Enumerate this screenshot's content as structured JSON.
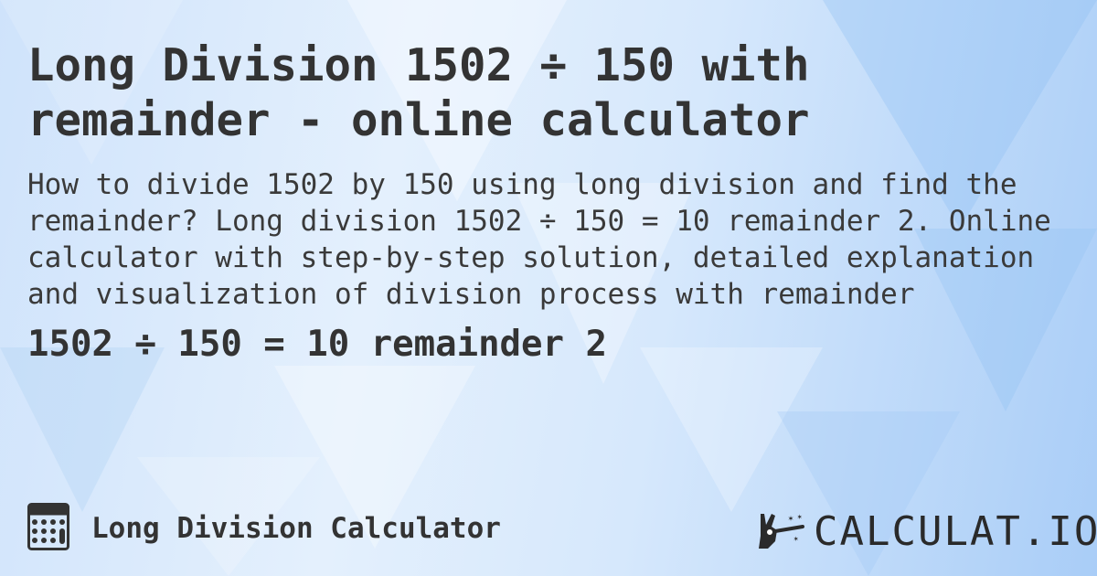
{
  "header": {
    "title": "Long Division 1502 ÷ 150 with remainder - online calculator"
  },
  "description": "How to divide 1502 by 150 using long division and find the remainder? Long division 1502 ÷ 150 = 10 remainder 2. Online calculator with step-by-step solution, detailed explanation and visualization of division process with remainder",
  "result": "1502 ÷ 150 = 10 remainder 2",
  "footer": {
    "icon": "calculator-icon",
    "label": "Long Division Calculator"
  },
  "logo": {
    "text": "CALCULAT.IO",
    "icon": "magic-hand-icon"
  },
  "colors": {
    "text": "#333333",
    "background": "#d6e8fc"
  }
}
